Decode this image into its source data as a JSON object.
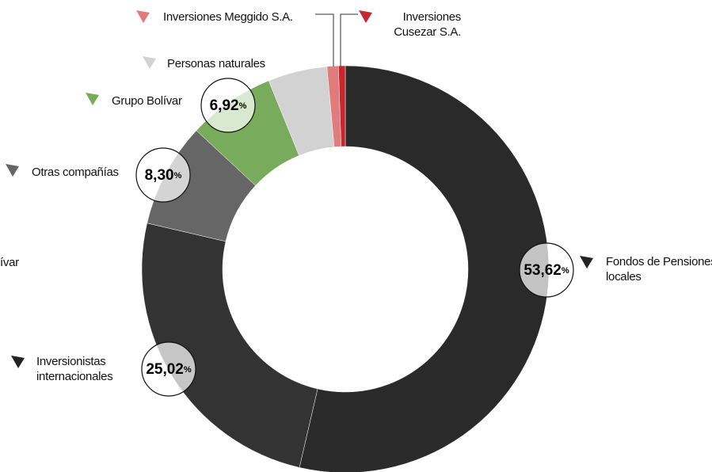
{
  "chart_data": {
    "type": "donut",
    "categories": [
      "Fondos de Pensiones locales",
      "Inversionistas internacionales",
      "Otras compañías",
      "Grupo Bolívar",
      "Personas naturales",
      "Inversiones Meggido S.A.",
      "Inversiones Cusezar S.A."
    ],
    "values": [
      53.62,
      25.02,
      8.3,
      6.92,
      4.7,
      0.9,
      0.54
    ],
    "value_labels": [
      "53,62",
      "25,02",
      "8,30",
      "6,92",
      null,
      null,
      null
    ],
    "unit": "%",
    "colors": [
      "#2a2a2a",
      "#333333",
      "#666666",
      "#78ab5c",
      "#d2d2d2",
      "#e07c7c",
      "#c7282d"
    ],
    "annotations": [
      "ívar"
    ]
  }
}
